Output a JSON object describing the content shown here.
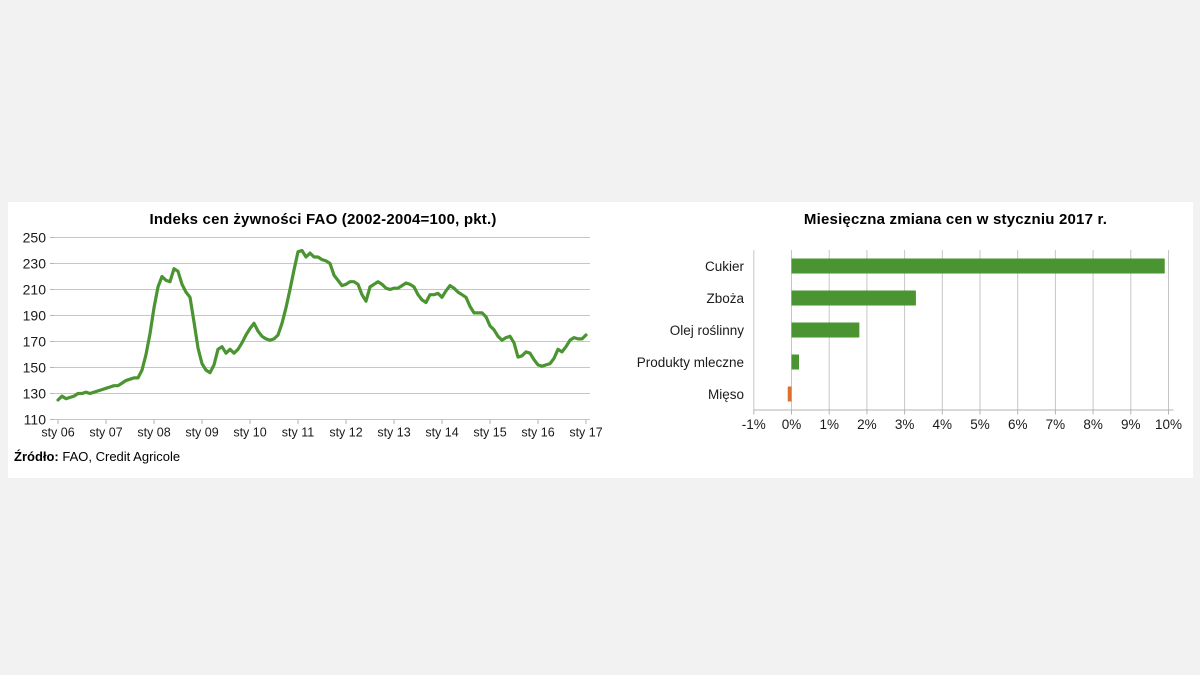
{
  "source": {
    "label": "Źródło:",
    "text": " FAO, Credit Agricole"
  },
  "colors": {
    "green": "#4a9431",
    "orange": "#dd6f30",
    "grid": "#c6c6c6",
    "axis": "#b3b3b3",
    "text": "#1a1a1a",
    "background": "#f2f2f2",
    "panel": "#ffffff"
  },
  "chart_data": [
    {
      "type": "line",
      "title": "Indeks cen żywności FAO (2002-2004=100, pkt.)",
      "ylabel": "",
      "xlabel": "",
      "ylim": [
        110,
        250
      ],
      "yticks": [
        250,
        230,
        210,
        190,
        170,
        150,
        130,
        110
      ],
      "x_tick_labels": [
        "sty 06",
        "sty 07",
        "sty 08",
        "sty 09",
        "sty 10",
        "sty 11",
        "sty 12",
        "sty 13",
        "sty 14",
        "sty 15",
        "sty 16",
        "sty 17"
      ],
      "x_tick_interval_months": 12,
      "grid": "horizontal",
      "legend": "none",
      "series": [
        {
          "name": "Indeks cen żywności FAO",
          "color": "#4a9431",
          "values": [
            125,
            128,
            126,
            127,
            128,
            130,
            130,
            131,
            130,
            131,
            132,
            133,
            134,
            135,
            136,
            136,
            138,
            140,
            141,
            142,
            142,
            148,
            160,
            176,
            196,
            212,
            220,
            217,
            216,
            226,
            224,
            214,
            208,
            204,
            185,
            165,
            153,
            148,
            146,
            152,
            164,
            166,
            161,
            164,
            161,
            164,
            169,
            175,
            180,
            184,
            178,
            174,
            172,
            171,
            172,
            175,
            184,
            196,
            210,
            225,
            239,
            240,
            235,
            238,
            235,
            235,
            233,
            232,
            230,
            221,
            217,
            213,
            214,
            216,
            216,
            214,
            206,
            201,
            212,
            214,
            216,
            214,
            211,
            210,
            211,
            211,
            213,
            215,
            214,
            212,
            206,
            202,
            200,
            206,
            206,
            207,
            204,
            209,
            213,
            211,
            208,
            206,
            204,
            197,
            192,
            192,
            192,
            189,
            182,
            179,
            174,
            171,
            173,
            174,
            169,
            158,
            159,
            162,
            161,
            156,
            152,
            151,
            152,
            153,
            157,
            164,
            162,
            166,
            171,
            173,
            172,
            172,
            175
          ]
        }
      ]
    },
    {
      "type": "bar",
      "orientation": "horizontal",
      "title": "Miesięczna zmiana cen w styczniu 2017 r.",
      "categories": [
        "Cukier",
        "Zboża",
        "Olej roślinny",
        "Produkty mleczne",
        "Mięso"
      ],
      "values": [
        9.9,
        3.3,
        1.8,
        0.2,
        -0.1
      ],
      "value_unit": "%",
      "xlim": [
        -1,
        10
      ],
      "x_tick_labels": [
        "-1%",
        "0%",
        "1%",
        "2%",
        "3%",
        "4%",
        "5%",
        "6%",
        "7%",
        "8%",
        "9%",
        "10%"
      ],
      "positive_color": "#4a9431",
      "negative_color": "#dd6f30",
      "grid": "vertical",
      "legend": "none"
    }
  ]
}
